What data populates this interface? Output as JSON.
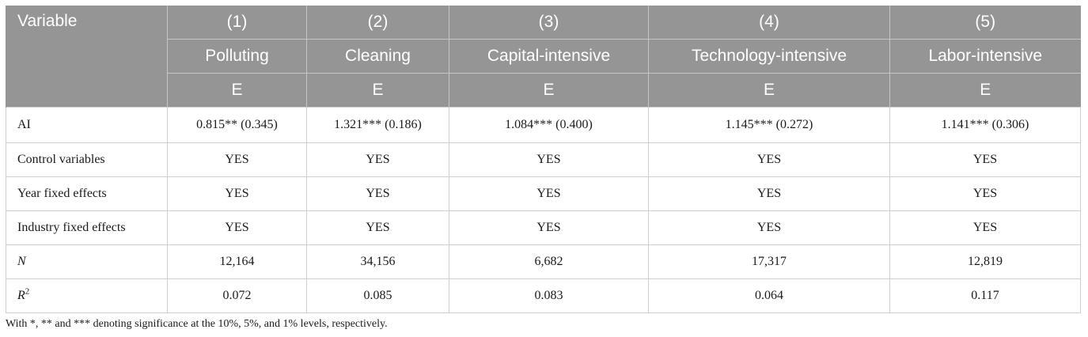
{
  "table": {
    "header": {
      "variable_label": "Variable",
      "numbers": [
        "(1)",
        "(2)",
        "(3)",
        "(4)",
        "(5)"
      ],
      "groups": [
        "Polluting",
        "Cleaning",
        "Capital-intensive",
        "Technology-intensive",
        "Labor-intensive"
      ],
      "dependent": [
        "E",
        "E",
        "E",
        "E",
        "E"
      ]
    },
    "rows": [
      {
        "label": "AI",
        "cells": [
          "0.815** (0.345)",
          "1.321*** (0.186)",
          "1.084*** (0.400)",
          "1.145*** (0.272)",
          "1.141*** (0.306)"
        ]
      },
      {
        "label": "Control variables",
        "cells": [
          "YES",
          "YES",
          "YES",
          "YES",
          "YES"
        ]
      },
      {
        "label": "Year fixed effects",
        "cells": [
          "YES",
          "YES",
          "YES",
          "YES",
          "YES"
        ]
      },
      {
        "label": "Industry fixed effects",
        "cells": [
          "YES",
          "YES",
          "YES",
          "YES",
          "YES"
        ]
      },
      {
        "label": "N",
        "cells": [
          "12,164",
          "34,156",
          "6,682",
          "17,317",
          "12,819"
        ]
      },
      {
        "label": "R",
        "label_sup": "2",
        "cells": [
          "0.072",
          "0.085",
          "0.083",
          "0.064",
          "0.117"
        ]
      }
    ]
  },
  "note": "With *, ** and *** denoting significance at the 10%, 5%, and 1% levels, respectively."
}
